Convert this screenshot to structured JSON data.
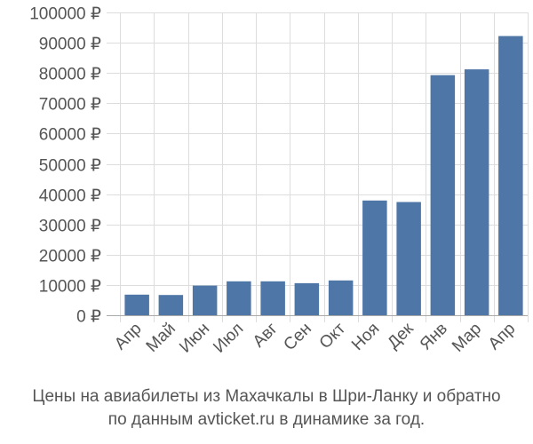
{
  "colors": {
    "bar": "#4e76a6",
    "grid": "#dddddd",
    "axis": "#aaaaaa",
    "text": "#555555"
  },
  "caption": {
    "line1": "Цены на авиабилеты из Махачкалы в Шри-Ланку и обратно",
    "line2": "по данным avticket.ru в динамике за год."
  },
  "chart_data": {
    "type": "bar",
    "title": "",
    "xlabel": "",
    "ylabel": "",
    "ylim": [
      0,
      100000
    ],
    "y_tick_step": 10000,
    "y_tick_suffix": " ₽",
    "grid": true,
    "legend": "none",
    "categories": [
      "Апр",
      "Май",
      "Июн",
      "Июл",
      "Авг",
      "Сен",
      "Окт",
      "Ноя",
      "Дек",
      "Янв",
      "Мар",
      "Апр"
    ],
    "values": [
      6800,
      6700,
      9800,
      11200,
      11200,
      10600,
      11500,
      37900,
      37400,
      79300,
      81200,
      92200
    ]
  }
}
